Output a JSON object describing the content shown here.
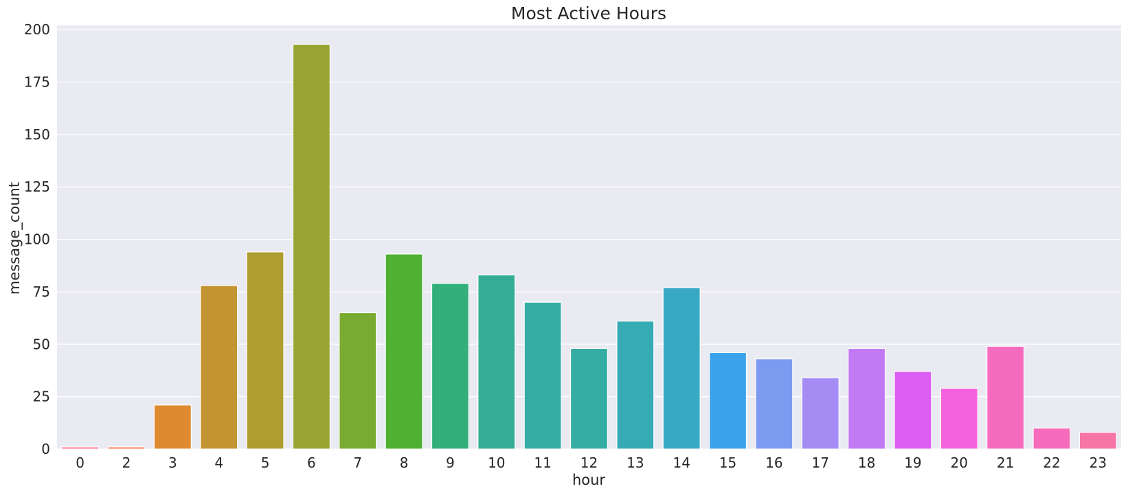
{
  "chart_data": {
    "type": "bar",
    "title": "Most Active Hours",
    "xlabel": "hour",
    "ylabel": "message_count",
    "categories": [
      "0",
      "2",
      "3",
      "4",
      "5",
      "6",
      "7",
      "8",
      "9",
      "10",
      "11",
      "12",
      "13",
      "14",
      "15",
      "16",
      "17",
      "18",
      "19",
      "20",
      "21",
      "22",
      "23"
    ],
    "values": [
      1,
      1,
      21,
      78,
      94,
      193,
      65,
      93,
      79,
      83,
      70,
      48,
      61,
      77,
      46,
      43,
      34,
      48,
      37,
      29,
      49,
      10,
      8
    ],
    "ylim": [
      0,
      202
    ],
    "yticks": [
      0,
      25,
      50,
      75,
      100,
      125,
      150,
      175,
      200
    ],
    "grid": true,
    "legend": "none",
    "colors": [
      "#f77189",
      "#f7754f",
      "#dd8a30",
      "#c39532",
      "#ae9d31",
      "#97a431",
      "#79ab31",
      "#4fb031",
      "#33b07a",
      "#34ad94",
      "#35aca4",
      "#36ada4",
      "#37abb4",
      "#38a9c5",
      "#3ba3ec",
      "#7d9af1",
      "#a48cf4",
      "#c17af4",
      "#db5ff2",
      "#f461dd",
      "#f56cbf",
      "#f66bbb",
      "#f775a5"
    ]
  }
}
